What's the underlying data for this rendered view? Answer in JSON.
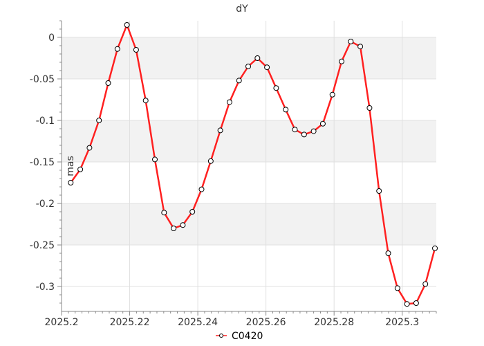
{
  "chart_data": {
    "type": "line",
    "title": "dY",
    "xlabel": "",
    "ylabel": "mas",
    "xlim": [
      2025.2,
      2025.31
    ],
    "ylim": [
      -0.33,
      0.02
    ],
    "x_ticks": [
      2025.2,
      2025.22,
      2025.24,
      2025.26,
      2025.28,
      2025.3
    ],
    "x_tick_labels": [
      "2025.2",
      "2025.22",
      "2025.24",
      "2025.26",
      "2025.28",
      "2025.3"
    ],
    "y_ticks": [
      0,
      -0.05,
      -0.1,
      -0.15,
      -0.2,
      -0.25,
      -0.3
    ],
    "y_tick_labels": [
      "0",
      "-0.05",
      "-0.1",
      "-0.15",
      "-0.2",
      "-0.25",
      "-0.3"
    ],
    "grid": true,
    "alternating_bands": true,
    "legend_position": "bottom",
    "series": [
      {
        "name": "C0420",
        "color": "#ff2020",
        "marker": "circle-open",
        "x": [
          2025.2027,
          2025.2055,
          2025.2082,
          2025.211,
          2025.2137,
          2025.2164,
          2025.2192,
          2025.2219,
          2025.2247,
          2025.2274,
          2025.2301,
          2025.2329,
          2025.2356,
          2025.2384,
          2025.2411,
          2025.2438,
          2025.2466,
          2025.2493,
          2025.2521,
          2025.2548,
          2025.2575,
          2025.2603,
          2025.263,
          2025.2658,
          2025.2685,
          2025.2712,
          2025.274,
          2025.2767,
          2025.2795,
          2025.2822,
          2025.2849,
          2025.2877,
          2025.2904,
          2025.2932,
          2025.2959,
          2025.2986,
          2025.3014,
          2025.3041,
          2025.3068,
          2025.3096
        ],
        "y": [
          -0.175,
          -0.159,
          -0.133,
          -0.1,
          -0.055,
          -0.014,
          0.015,
          -0.015,
          -0.076,
          -0.147,
          -0.211,
          -0.23,
          -0.226,
          -0.21,
          -0.183,
          -0.149,
          -0.112,
          -0.078,
          -0.052,
          -0.035,
          -0.025,
          -0.036,
          -0.061,
          -0.087,
          -0.111,
          -0.117,
          -0.113,
          -0.104,
          -0.069,
          -0.029,
          -0.005,
          -0.011,
          -0.085,
          -0.185,
          -0.26,
          -0.302,
          -0.321,
          -0.32,
          -0.297,
          -0.254
        ]
      }
    ]
  }
}
